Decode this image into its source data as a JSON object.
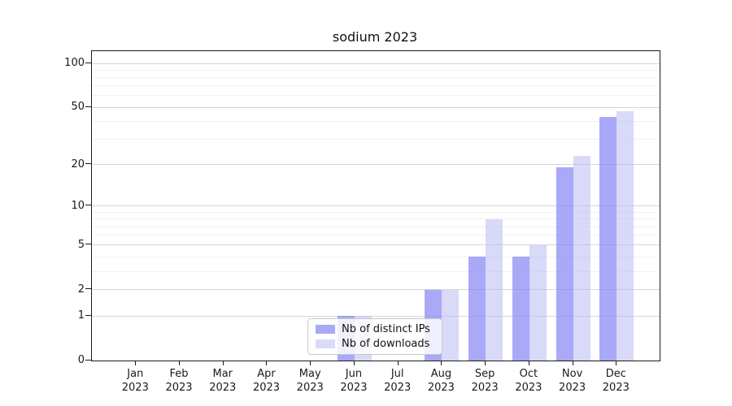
{
  "title": "sodium 2023",
  "legend": {
    "items": [
      {
        "label": "Nb of distinct IPs"
      },
      {
        "label": "Nb of downloads"
      }
    ]
  },
  "chart_data": {
    "type": "bar",
    "title": "sodium 2023",
    "xlabel": "",
    "ylabel": "",
    "scale": "log10(1+x)",
    "grid": true,
    "legend_position": "lower-center",
    "categories": [
      "Jan",
      "Feb",
      "Mar",
      "Apr",
      "May",
      "Jun",
      "Jul",
      "Aug",
      "Sep",
      "Oct",
      "Nov",
      "Dec"
    ],
    "year": "2023",
    "y_ticks": [
      {
        "label": "100",
        "value": 100
      },
      {
        "label": "50",
        "value": 50
      },
      {
        "label": "20",
        "value": 20
      },
      {
        "label": "10",
        "value": 10
      },
      {
        "label": "5",
        "value": 5
      },
      {
        "label": "2",
        "value": 2
      },
      {
        "label": "1",
        "value": 1
      },
      {
        "label": "0",
        "value": 0
      }
    ],
    "minor_gridline_values": [
      3,
      4,
      6,
      7,
      8,
      9,
      30,
      40,
      60,
      70,
      80,
      90
    ],
    "ylim": [
      0,
      120
    ],
    "series": [
      {
        "name": "Nb of distinct IPs",
        "color": "#a9a9f6",
        "values": [
          0,
          0,
          0,
          0,
          0,
          1,
          0,
          2,
          4,
          4,
          19,
          43
        ]
      },
      {
        "name": "Nb of downloads",
        "color": "#dbdbf8",
        "values": [
          0,
          0,
          0,
          0,
          0,
          1,
          0,
          2,
          8,
          5,
          23,
          47
        ]
      }
    ]
  }
}
